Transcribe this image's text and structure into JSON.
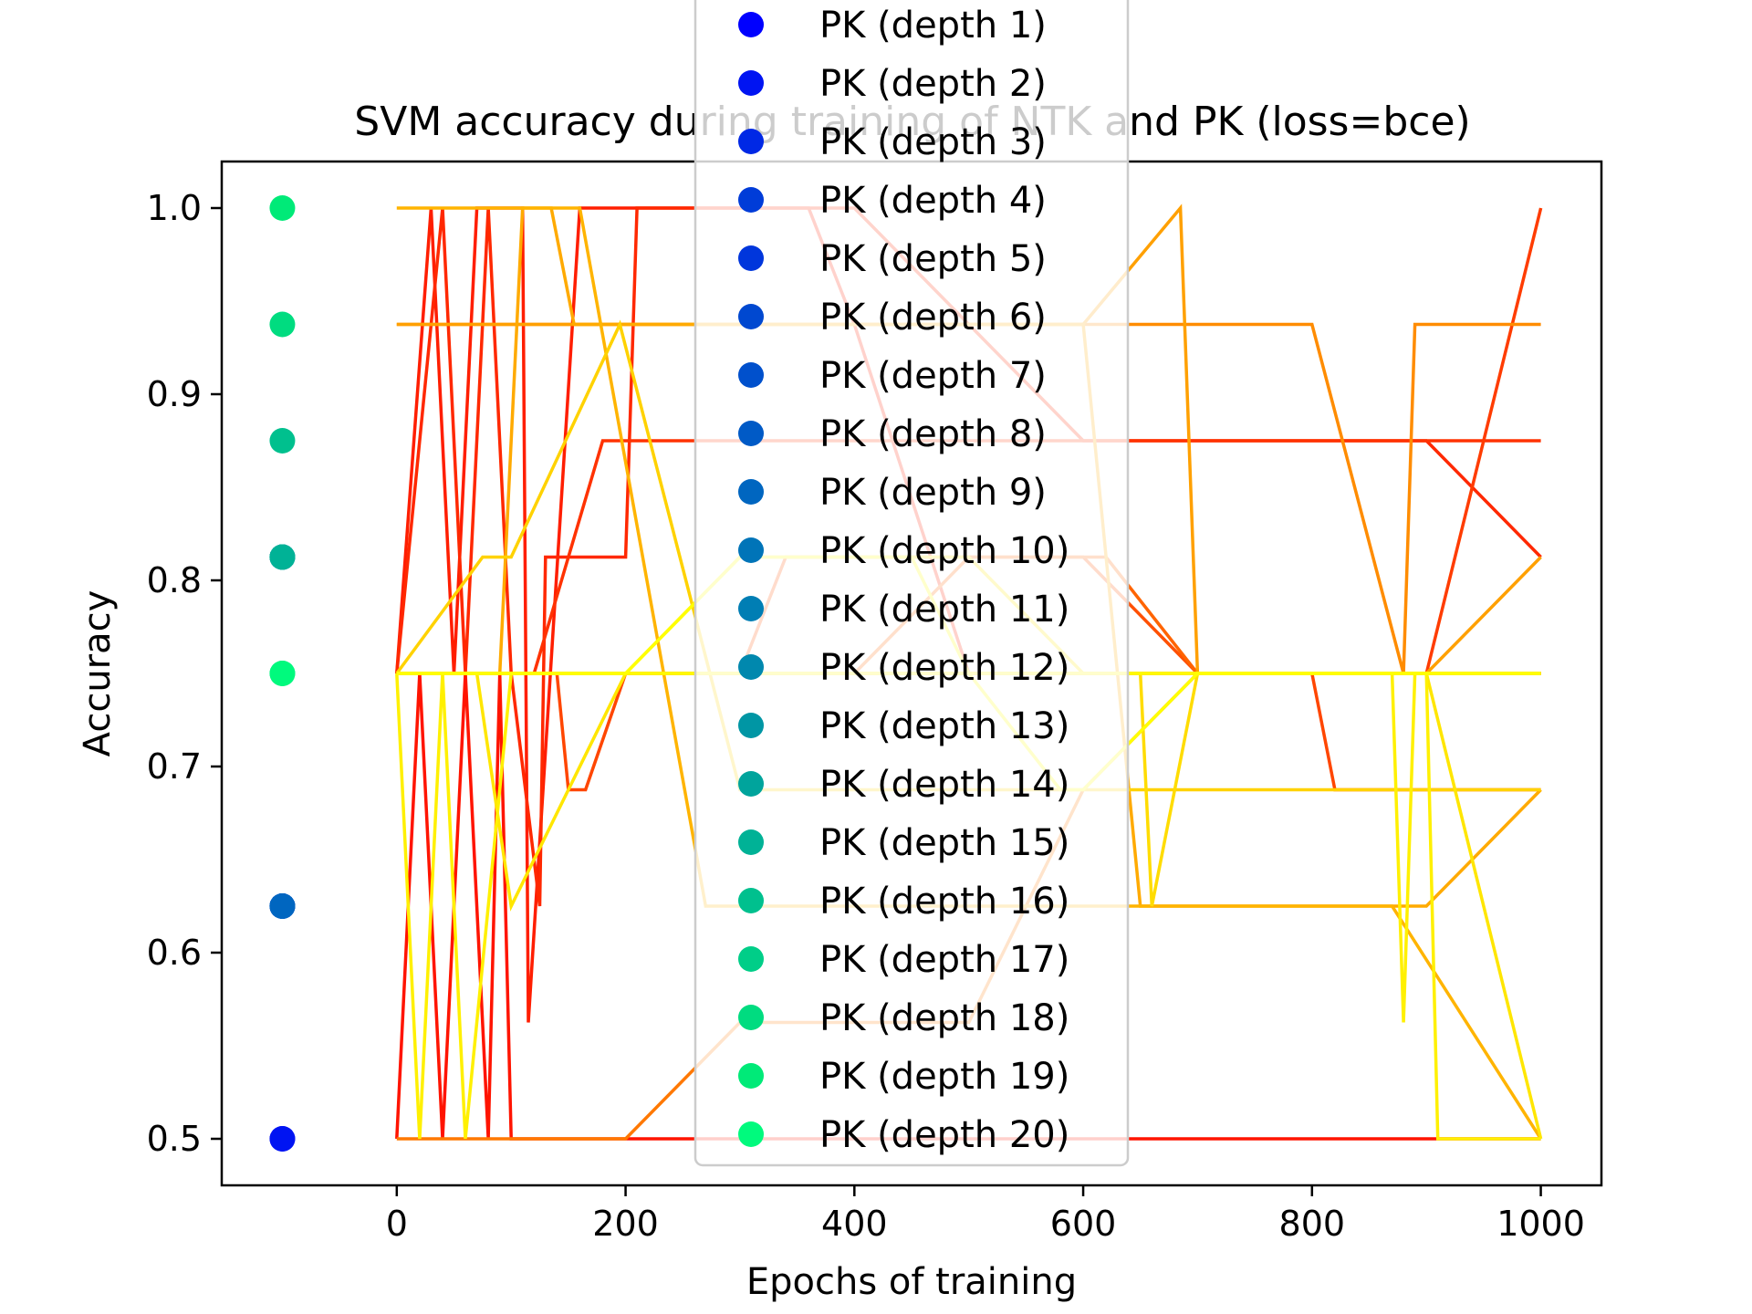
{
  "chart_data": {
    "type": "line",
    "title": "SVM accuracy during training of NTK and PK (loss=bce)",
    "xlabel": "Epochs of training",
    "ylabel": "Accuracy",
    "xlim": [
      -153,
      1053
    ],
    "ylim": [
      0.475,
      1.025
    ],
    "xticks": [
      0,
      200,
      400,
      600,
      800,
      1000
    ],
    "yticks": [
      0.5,
      0.6,
      0.7,
      0.8,
      0.9,
      1.0
    ],
    "xtick_labels": [
      "0",
      "200",
      "400",
      "600",
      "800",
      "1000"
    ],
    "ytick_labels": [
      "0.5",
      "0.6",
      "0.7",
      "0.8",
      "0.9",
      "1.0"
    ],
    "legend_placement": "top-center",
    "scatter_x": -100,
    "pk_points": [
      {
        "name": "PK (depth 1)",
        "color": "#0000ff",
        "y": 0.5
      },
      {
        "name": "PK (depth 2)",
        "color": "#0014f2",
        "y": 0.5
      },
      {
        "name": "PK (depth 3)",
        "color": "#0028e5",
        "y": 0.625
      },
      {
        "name": "PK (depth 4)",
        "color": "#003cd8",
        "y": 0.625
      },
      {
        "name": "PK (depth 5)",
        "color": "#0036dc",
        "y": 0.625
      },
      {
        "name": "PK (depth 6)",
        "color": "#0048d0",
        "y": 0.625
      },
      {
        "name": "PK (depth 7)",
        "color": "#0050cc",
        "y": 0.625
      },
      {
        "name": "PK (depth 8)",
        "color": "#005ac6",
        "y": 0.625
      },
      {
        "name": "PK (depth 9)",
        "color": "#0066c0",
        "y": 0.625
      },
      {
        "name": "PK (depth 10)",
        "color": "#0074b8",
        "y": 0.8125
      },
      {
        "name": "PK (depth 11)",
        "color": "#007eb4",
        "y": 0.8125
      },
      {
        "name": "PK (depth 12)",
        "color": "#0088ae",
        "y": 0.8125
      },
      {
        "name": "PK (depth 13)",
        "color": "#0096a4",
        "y": 0.8125
      },
      {
        "name": "PK (depth 14)",
        "color": "#00a49c",
        "y": 0.8125
      },
      {
        "name": "PK (depth 15)",
        "color": "#00b296",
        "y": 0.8125
      },
      {
        "name": "PK (depth 16)",
        "color": "#00c08e",
        "y": 0.875
      },
      {
        "name": "PK (depth 17)",
        "color": "#00ce88",
        "y": 0.75
      },
      {
        "name": "PK (depth 18)",
        "color": "#00dc80",
        "y": 0.9375
      },
      {
        "name": "PK (depth 19)",
        "color": "#00ea78",
        "y": 1.0
      },
      {
        "name": "PK (depth 20)",
        "color": "#00fa7d",
        "y": 0.75
      }
    ],
    "ntk_series": [
      {
        "color": "#ff1400",
        "x": [
          0,
          20,
          40,
          60,
          80,
          90,
          100,
          110,
          130,
          150,
          175,
          200,
          210,
          250,
          300,
          350,
          400,
          450,
          500,
          600,
          700,
          800,
          900,
          1000
        ],
        "y": [
          0.5,
          0.75,
          0.5,
          0.75,
          0.5,
          0.75,
          0.5,
          0.5,
          0.5,
          0.5,
          0.5,
          0.5,
          0.5,
          0.5,
          0.5,
          0.5,
          0.5,
          0.5,
          0.5,
          0.5,
          0.5,
          0.5,
          0.5,
          0.5
        ]
      },
      {
        "color": "#ff1e00",
        "x": [
          0,
          30,
          50,
          70,
          90,
          100,
          110,
          115,
          160,
          200,
          250,
          300,
          360,
          400,
          500,
          600,
          700,
          800,
          900,
          1000
        ],
        "y": [
          0.75,
          1.0,
          0.75,
          1.0,
          1.0,
          1.0,
          1.0,
          0.5625,
          1.0,
          1.0,
          1.0,
          1.0,
          1.0,
          0.9375,
          0.75,
          0.75,
          0.75,
          0.75,
          0.75,
          0.75
        ]
      },
      {
        "color": "#ff2800",
        "x": [
          0,
          40,
          60,
          80,
          100,
          125,
          130,
          140,
          200,
          210,
          300,
          400,
          500,
          600,
          700,
          800,
          900,
          1000
        ],
        "y": [
          0.75,
          1.0,
          0.75,
          1.0,
          0.75,
          0.625,
          0.8125,
          0.8125,
          0.8125,
          1.0,
          1.0,
          1.0,
          0.9375,
          0.875,
          0.875,
          0.875,
          0.875,
          0.8125
        ]
      },
      {
        "color": "#ff3200",
        "x": [
          0,
          50,
          100,
          120,
          180,
          210,
          300,
          400,
          500,
          600,
          700,
          800,
          900,
          1000
        ],
        "y": [
          0.75,
          0.75,
          0.75,
          0.75,
          0.875,
          0.875,
          0.875,
          0.875,
          0.875,
          0.875,
          0.875,
          0.875,
          0.875,
          0.875
        ]
      },
      {
        "color": "#ff3c00",
        "x": [
          0,
          40,
          80,
          110,
          140,
          200,
          260,
          320,
          400,
          500,
          600,
          700,
          800,
          900,
          1000
        ],
        "y": [
          0.75,
          0.75,
          0.75,
          0.75,
          0.75,
          0.75,
          0.75,
          0.75,
          0.75,
          0.75,
          0.75,
          0.75,
          0.75,
          0.75,
          1.0
        ]
      },
      {
        "color": "#ff4600",
        "x": [
          0,
          60,
          100,
          140,
          150,
          165,
          200,
          300,
          400,
          500,
          600,
          700,
          800,
          820,
          900,
          1000
        ],
        "y": [
          0.75,
          0.75,
          0.75,
          0.75,
          0.6875,
          0.6875,
          0.75,
          0.75,
          0.75,
          0.75,
          0.75,
          0.75,
          0.75,
          0.6875,
          0.6875,
          0.6875
        ]
      },
      {
        "color": "#ff5000",
        "x": [
          0,
          50,
          100,
          150,
          200,
          300,
          340,
          400,
          500,
          600,
          700,
          800,
          900,
          1000
        ],
        "y": [
          0.75,
          0.75,
          0.75,
          0.75,
          0.75,
          0.75,
          0.8125,
          0.8125,
          0.8125,
          0.8125,
          0.75,
          0.75,
          0.75,
          0.75
        ]
      },
      {
        "color": "#ff6400",
        "x": [
          0,
          80,
          100,
          200,
          300,
          400,
          500,
          600,
          620,
          700,
          800,
          860,
          900,
          1000
        ],
        "y": [
          0.75,
          0.75,
          0.75,
          0.75,
          0.75,
          0.75,
          0.8125,
          0.8125,
          0.8125,
          0.75,
          0.75,
          0.75,
          0.75,
          0.75
        ]
      },
      {
        "color": "#ff7800",
        "x": [
          0,
          60,
          100,
          200,
          300,
          400,
          500,
          600,
          700,
          800,
          900,
          1000
        ],
        "y": [
          0.5,
          0.5,
          0.5,
          0.5,
          0.5625,
          0.5625,
          0.5625,
          0.6875,
          0.75,
          0.75,
          0.75,
          0.75
        ]
      },
      {
        "color": "#ff8c00",
        "x": [
          0,
          100,
          200,
          300,
          400,
          500,
          600,
          700,
          800,
          880,
          890,
          1000
        ],
        "y": [
          0.9375,
          0.9375,
          0.9375,
          0.9375,
          0.9375,
          0.9375,
          0.9375,
          0.9375,
          0.9375,
          0.75,
          0.9375,
          0.9375
        ]
      },
      {
        "color": "#ffa000",
        "x": [
          0,
          80,
          160,
          200,
          300,
          400,
          500,
          600,
          685,
          700,
          800,
          900,
          1000
        ],
        "y": [
          0.9375,
          0.9375,
          0.9375,
          0.9375,
          0.9375,
          0.9375,
          0.9375,
          0.9375,
          1.0,
          0.75,
          0.75,
          0.75,
          0.8125
        ]
      },
      {
        "color": "#ffaa00",
        "x": [
          0,
          90,
          110,
          135,
          155,
          200,
          300,
          400,
          500,
          600,
          650,
          665,
          700,
          800,
          900,
          1000
        ],
        "y": [
          0.75,
          0.75,
          1.0,
          1.0,
          0.9375,
          0.9375,
          0.9375,
          0.9375,
          0.9375,
          0.9375,
          0.625,
          0.625,
          0.625,
          0.625,
          0.625,
          0.6875
        ]
      },
      {
        "color": "#ffb400",
        "x": [
          0,
          70,
          130,
          160,
          270,
          300,
          400,
          500,
          600,
          700,
          800,
          870,
          1000
        ],
        "y": [
          1.0,
          1.0,
          1.0,
          1.0,
          0.625,
          0.625,
          0.625,
          0.625,
          0.625,
          0.625,
          0.625,
          0.625,
          0.5
        ]
      },
      {
        "color": "#ffc300",
        "x": [
          0,
          60,
          100,
          150,
          200,
          300,
          400,
          500,
          600,
          700,
          800,
          900,
          1000
        ],
        "y": [
          0.75,
          0.75,
          0.75,
          0.75,
          0.75,
          0.75,
          0.75,
          0.75,
          0.75,
          0.75,
          0.75,
          0.75,
          0.75
        ]
      },
      {
        "color": "#ffd200",
        "x": [
          0,
          75,
          100,
          195,
          300,
          400,
          500,
          600,
          700,
          800,
          900,
          1000
        ],
        "y": [
          0.75,
          0.8125,
          0.8125,
          0.9375,
          0.6875,
          0.6875,
          0.6875,
          0.6875,
          0.6875,
          0.6875,
          0.6875,
          0.6875
        ]
      },
      {
        "color": "#ffdc00",
        "x": [
          0,
          50,
          100,
          150,
          200,
          300,
          400,
          450,
          500,
          600,
          650,
          660,
          700,
          800,
          900,
          1000
        ],
        "y": [
          0.75,
          0.75,
          0.75,
          0.75,
          0.75,
          0.75,
          0.75,
          0.75,
          0.75,
          0.75,
          0.75,
          0.625,
          0.75,
          0.75,
          0.75,
          0.75
        ]
      },
      {
        "color": "#ffe600",
        "x": [
          0,
          40,
          70,
          100,
          200,
          300,
          400,
          500,
          600,
          700,
          800,
          900,
          1000
        ],
        "y": [
          0.75,
          0.75,
          0.75,
          0.625,
          0.75,
          0.8125,
          0.8125,
          0.8125,
          0.75,
          0.75,
          0.75,
          0.75,
          0.5
        ]
      },
      {
        "color": "#fff000",
        "x": [
          0,
          20,
          40,
          60,
          100,
          200,
          300,
          400,
          500,
          600,
          700,
          800,
          860,
          870,
          880,
          890,
          900,
          910,
          1000
        ],
        "y": [
          0.75,
          0.5,
          0.75,
          0.5,
          0.75,
          0.75,
          0.75,
          0.75,
          0.75,
          0.75,
          0.75,
          0.75,
          0.75,
          0.75,
          0.5625,
          0.75,
          0.75,
          0.5,
          0.5
        ]
      },
      {
        "color": "#fffa00",
        "x": [
          0,
          100,
          200,
          300,
          400,
          500,
          600,
          700,
          800,
          870,
          900,
          1000
        ],
        "y": [
          0.75,
          0.75,
          0.75,
          0.75,
          0.75,
          0.75,
          0.75,
          0.75,
          0.75,
          0.75,
          0.75,
          0.75
        ]
      },
      {
        "color": "#ffff00",
        "x": [
          0,
          100,
          200,
          300,
          400,
          450,
          500,
          580,
          600,
          700,
          800,
          860,
          880,
          900,
          1000
        ],
        "y": [
          0.75,
          0.75,
          0.75,
          0.8125,
          0.8125,
          0.8125,
          0.75,
          0.6875,
          0.6875,
          0.75,
          0.75,
          0.75,
          0.75,
          0.75,
          0.75
        ]
      }
    ]
  }
}
